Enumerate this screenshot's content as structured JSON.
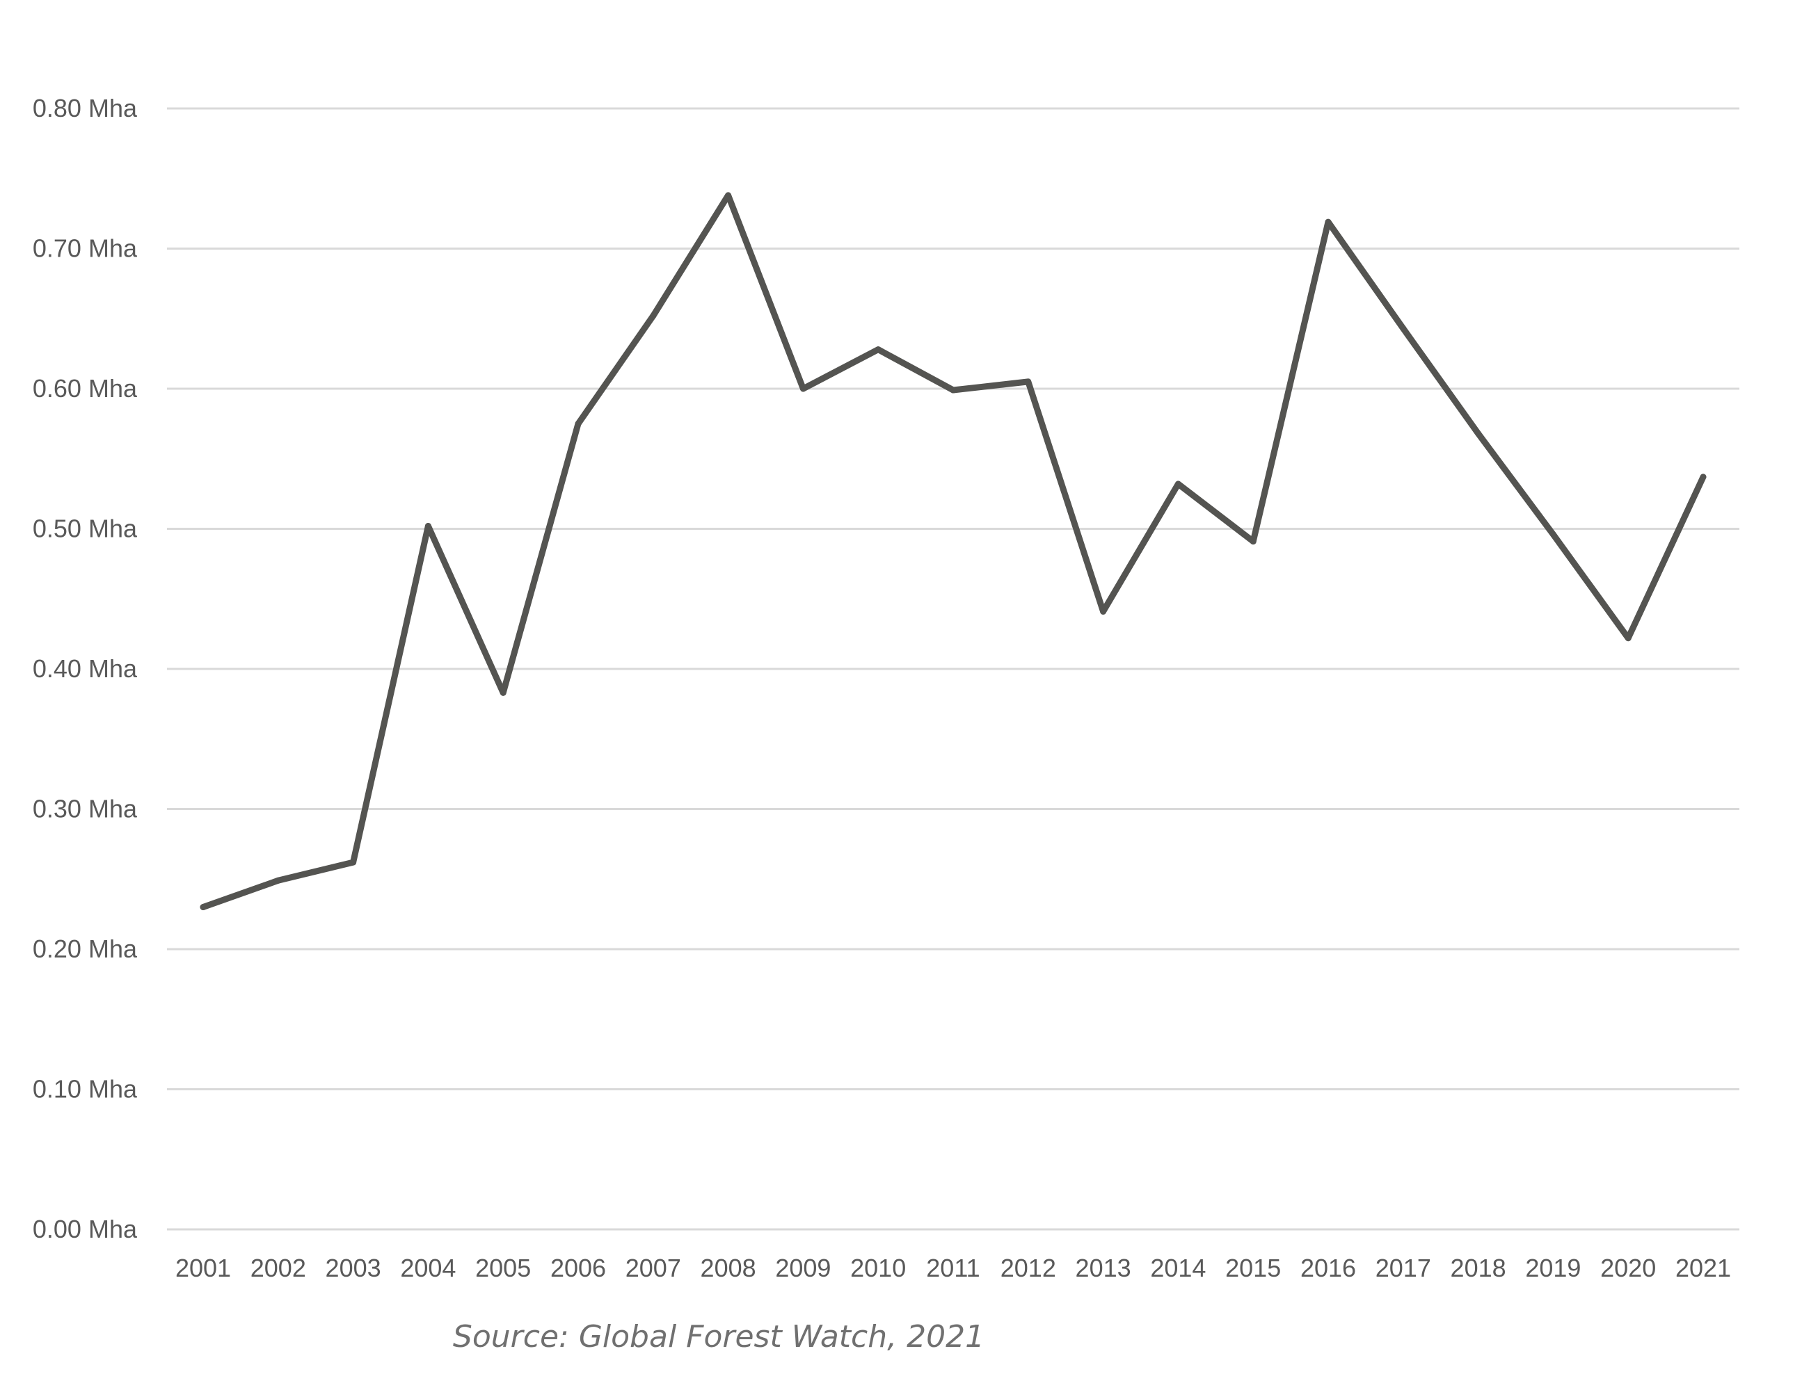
{
  "chart_data": {
    "type": "line",
    "title": "",
    "xlabel": "",
    "ylabel": "",
    "categories": [
      "2001",
      "2002",
      "2003",
      "2004",
      "2005",
      "2006",
      "2007",
      "2008",
      "2009",
      "2010",
      "2011",
      "2012",
      "2013",
      "2014",
      "2015",
      "2016",
      "2017",
      "2018",
      "2019",
      "2020",
      "2021"
    ],
    "y_ticks": [
      "0.00 Mha",
      "0.10 Mha",
      "0.20 Mha",
      "0.30 Mha",
      "0.40 Mha",
      "0.50 Mha",
      "0.60 Mha",
      "0.70 Mha",
      "0.80 Mha"
    ],
    "ylim": [
      0,
      0.8
    ],
    "grid": true,
    "legend": "none",
    "series": [
      {
        "values": [
          0.23,
          0.249,
          0.262,
          0.502,
          0.383,
          0.575,
          0.652,
          0.738,
          0.6,
          0.628,
          0.599,
          0.605,
          0.441,
          0.532,
          0.491,
          0.719,
          0.643,
          0.568,
          0.496,
          0.422,
          0.537
        ],
        "color": "#545451"
      }
    ],
    "source": "Source: Global Forest Watch, 2021",
    "colors": {
      "grid": "#d9d9d9",
      "axis_text": "#595959",
      "source_text": "#707070"
    }
  }
}
